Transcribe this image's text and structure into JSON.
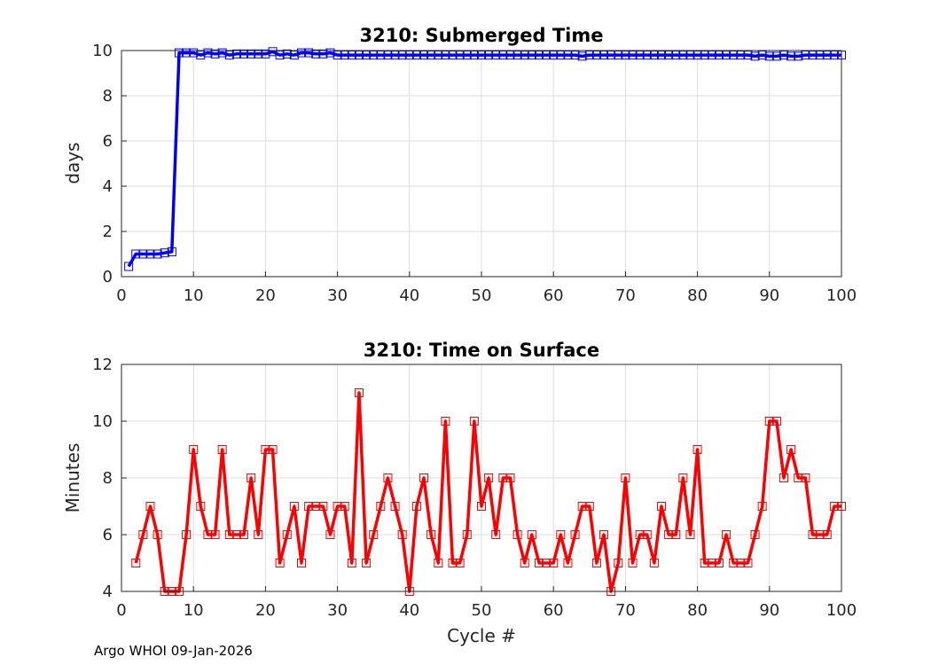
{
  "footer": "Argo WHOI 09-Jan-2026",
  "colors": {
    "top_series": "#0000ff",
    "bottom_series": "#ff0000",
    "grid": "#dcdcdc",
    "axis": "#262626"
  },
  "chart_data": [
    {
      "type": "line",
      "title": "3210: Submerged Time",
      "xlabel": "",
      "ylabel": "days",
      "xlim": [
        0,
        100
      ],
      "ylim": [
        0,
        10
      ],
      "xticks": [
        0,
        10,
        20,
        30,
        40,
        50,
        60,
        70,
        80,
        90,
        100
      ],
      "yticks": [
        0,
        2,
        4,
        6,
        8,
        10
      ],
      "grid": true,
      "marker": "square",
      "series": [
        {
          "name": "submerged",
          "x": [
            1,
            2,
            3,
            4,
            5,
            6,
            7,
            8,
            9,
            10,
            11,
            12,
            13,
            14,
            15,
            16,
            17,
            18,
            19,
            20,
            21,
            22,
            23,
            24,
            25,
            26,
            27,
            28,
            29,
            30,
            31,
            32,
            33,
            34,
            35,
            36,
            37,
            38,
            39,
            40,
            41,
            42,
            43,
            44,
            45,
            46,
            47,
            48,
            49,
            50,
            51,
            52,
            53,
            54,
            55,
            56,
            57,
            58,
            59,
            60,
            61,
            62,
            63,
            64,
            65,
            66,
            67,
            68,
            69,
            70,
            71,
            72,
            73,
            74,
            75,
            76,
            77,
            78,
            79,
            80,
            81,
            82,
            83,
            84,
            85,
            86,
            87,
            88,
            89,
            90,
            91,
            92,
            93,
            94,
            95,
            96,
            97,
            98,
            99,
            100
          ],
          "values": [
            0.45,
            1.0,
            1.0,
            1.0,
            1.0,
            1.05,
            1.1,
            9.9,
            9.9,
            9.9,
            9.8,
            9.9,
            9.85,
            9.9,
            9.8,
            9.85,
            9.85,
            9.85,
            9.85,
            9.85,
            9.95,
            9.8,
            9.85,
            9.8,
            9.9,
            9.9,
            9.85,
            9.85,
            9.9,
            9.8,
            9.8,
            9.8,
            9.8,
            9.8,
            9.8,
            9.8,
            9.8,
            9.8,
            9.8,
            9.8,
            9.8,
            9.8,
            9.8,
            9.8,
            9.8,
            9.8,
            9.8,
            9.8,
            9.8,
            9.8,
            9.8,
            9.8,
            9.8,
            9.8,
            9.8,
            9.8,
            9.8,
            9.8,
            9.8,
            9.8,
            9.8,
            9.8,
            9.8,
            9.75,
            9.8,
            9.8,
            9.8,
            9.8,
            9.8,
            9.8,
            9.8,
            9.8,
            9.8,
            9.8,
            9.8,
            9.8,
            9.8,
            9.8,
            9.8,
            9.8,
            9.8,
            9.8,
            9.8,
            9.8,
            9.8,
            9.8,
            9.8,
            9.75,
            9.8,
            9.75,
            9.75,
            9.8,
            9.75,
            9.75,
            9.8,
            9.8,
            9.8,
            9.8,
            9.8,
            9.8
          ]
        }
      ]
    },
    {
      "type": "line",
      "title": "3210: Time on Surface",
      "xlabel": "Cycle #",
      "ylabel": "Minutes",
      "xlim": [
        0,
        100
      ],
      "ylim": [
        4,
        12
      ],
      "xticks": [
        0,
        10,
        20,
        30,
        40,
        50,
        60,
        70,
        80,
        90,
        100
      ],
      "yticks": [
        4,
        6,
        8,
        10,
        12
      ],
      "grid": true,
      "marker": "square",
      "series": [
        {
          "name": "surface",
          "x": [
            2,
            3,
            4,
            5,
            6,
            7,
            8,
            9,
            10,
            11,
            12,
            13,
            14,
            15,
            16,
            17,
            18,
            19,
            20,
            21,
            22,
            23,
            24,
            25,
            26,
            27,
            28,
            29,
            30,
            31,
            32,
            33,
            34,
            35,
            36,
            37,
            38,
            39,
            40,
            41,
            42,
            43,
            44,
            45,
            46,
            47,
            48,
            49,
            50,
            51,
            52,
            53,
            54,
            55,
            56,
            57,
            58,
            59,
            60,
            61,
            62,
            63,
            64,
            65,
            66,
            67,
            68,
            69,
            70,
            71,
            72,
            73,
            74,
            75,
            76,
            77,
            78,
            79,
            80,
            81,
            82,
            83,
            84,
            85,
            86,
            87,
            88,
            89,
            90,
            91,
            92,
            93,
            94,
            95,
            96,
            97,
            98,
            99,
            100
          ],
          "values": [
            5,
            6,
            7,
            6,
            4,
            4,
            4,
            6,
            9,
            7,
            6,
            6,
            9,
            6,
            6,
            6,
            8,
            6,
            9,
            9,
            5,
            6,
            7,
            5,
            7,
            7,
            7,
            6,
            7,
            7,
            5,
            11,
            5,
            6,
            7,
            8,
            7,
            6,
            4,
            7,
            8,
            6,
            5,
            10,
            5,
            5,
            6,
            10,
            7,
            8,
            6,
            8,
            8,
            6,
            5,
            6,
            5,
            5,
            5,
            6,
            5,
            6,
            7,
            7,
            5,
            6,
            4,
            5,
            8,
            5,
            6,
            6,
            5,
            7,
            6,
            6,
            8,
            6,
            9,
            5,
            5,
            5,
            6,
            5,
            5,
            5,
            6,
            7,
            10,
            10,
            8,
            9,
            8,
            8,
            6,
            6,
            6,
            7,
            7
          ]
        }
      ]
    }
  ]
}
